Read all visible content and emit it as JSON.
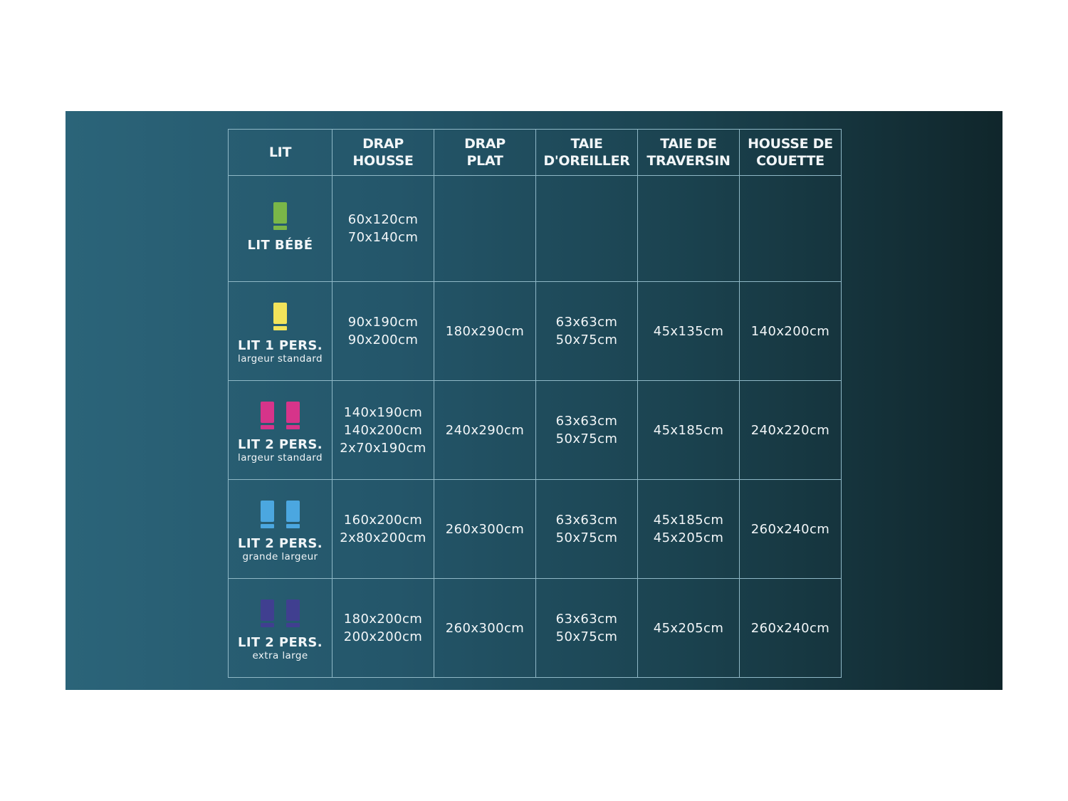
{
  "headers": [
    [
      "LIT"
    ],
    [
      "DRAP",
      "HOUSSE"
    ],
    [
      "DRAP",
      "PLAT"
    ],
    [
      "TAIE",
      "D'OREILLER"
    ],
    [
      "TAIE DE",
      "TRAVERSIN"
    ],
    [
      "HOUSSE DE",
      "COUETTE"
    ]
  ],
  "rows": [
    {
      "name": "LIT BÉBÉ",
      "sub": "",
      "icon": "single-bed-icon",
      "icon_count": 1,
      "color": "#7ab648",
      "cells": [
        [
          "60x120cm",
          "70x140cm"
        ],
        [],
        [],
        [],
        []
      ]
    },
    {
      "name": "LIT 1 PERS.",
      "sub": "largeur standard",
      "icon": "single-bed-icon",
      "icon_count": 1,
      "color": "#f2e35a",
      "cells": [
        [
          "90x190cm",
          "90x200cm"
        ],
        [
          "180x290cm"
        ],
        [
          "63x63cm",
          "50x75cm"
        ],
        [
          "45x135cm"
        ],
        [
          "140x200cm"
        ]
      ]
    },
    {
      "name": "LIT 2 PERS.",
      "sub": "largeur standard",
      "icon": "double-bed-icon",
      "icon_count": 2,
      "color": "#d6348a",
      "cells": [
        [
          "140x190cm",
          "140x200cm",
          "2x70x190cm"
        ],
        [
          "240x290cm"
        ],
        [
          "63x63cm",
          "50x75cm"
        ],
        [
          "45x185cm"
        ],
        [
          "240x220cm"
        ]
      ]
    },
    {
      "name": "LIT 2 PERS.",
      "sub": "grande largeur",
      "icon": "double-bed-icon",
      "icon_count": 2,
      "color": "#4ba7e0",
      "cells": [
        [
          "160x200cm",
          "2x80x200cm"
        ],
        [
          "260x300cm"
        ],
        [
          "63x63cm",
          "50x75cm"
        ],
        [
          "45x185cm",
          "45x205cm"
        ],
        [
          "260x240cm"
        ]
      ]
    },
    {
      "name": "LIT 2 PERS.",
      "sub": "extra large",
      "icon": "double-bed-icon",
      "icon_count": 2,
      "color": "#403f90",
      "cells": [
        [
          "180x200cm",
          "200x200cm"
        ],
        [
          "260x300cm"
        ],
        [
          "63x63cm",
          "50x75cm"
        ],
        [
          "45x205cm"
        ],
        [
          "260x240cm"
        ]
      ]
    }
  ]
}
